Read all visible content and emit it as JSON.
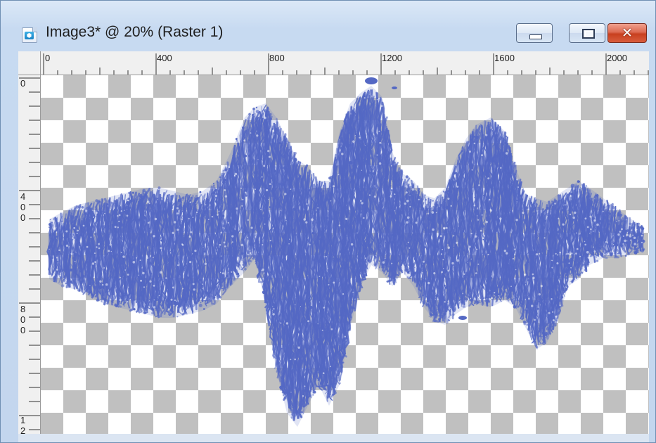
{
  "window": {
    "title": "Image3* @  20% (Raster 1)",
    "icon": "psp-image-icon",
    "controls": {
      "minimize_icon": "minimize-icon",
      "maximize_icon": "maximize-icon",
      "close_icon": "close-icon",
      "close_glyph": "✕"
    }
  },
  "rulers": {
    "top": [
      "0",
      "400",
      "800",
      "1200",
      "1600",
      "2000"
    ],
    "left": [
      [
        "0"
      ],
      [
        "4",
        "0",
        "0"
      ],
      [
        "8",
        "0",
        "0"
      ],
      [
        "1",
        "2"
      ]
    ]
  },
  "canvas": {
    "zoom": "20%",
    "layer": "Raster 1",
    "transparency": "checkerboard",
    "stroke_color": "#5468c4",
    "content": "blue-waveform-brush-strokes"
  }
}
